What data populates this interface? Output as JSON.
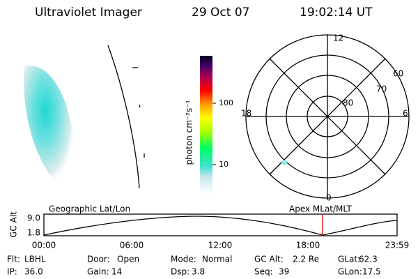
{
  "header": {
    "instrument": "Ultraviolet Imager",
    "date": "29 Oct 07",
    "time": "19:02:14 UT"
  },
  "colorbar": {
    "label": "photon cm⁻²s⁻¹",
    "ticks": [
      "100",
      "10"
    ]
  },
  "polar": {
    "mlt_labels": [
      "12",
      "18",
      "6",
      "0"
    ],
    "lat_labels": [
      "60",
      "70",
      "80"
    ]
  },
  "altitude_plot": {
    "left_title": "Geographic Lat/Lon",
    "right_title": "Apex MLat/MLT",
    "y_label": "GC Alt",
    "y_ticks": [
      "9.0",
      "1.8"
    ],
    "x_ticks": [
      "00:00",
      "06:00",
      "12:00",
      "18:00",
      "23:59"
    ]
  },
  "footer": {
    "rows": [
      [
        [
          "Flt:",
          "LBHL"
        ],
        [
          "Door:",
          "Open"
        ],
        [
          "Mode:",
          "Normal"
        ],
        [
          "GC Alt:",
          "2.2 Re"
        ],
        [
          "GLat:",
          "62.3"
        ]
      ],
      [
        [
          "IP:",
          "36.0"
        ],
        [
          "Gain:",
          "14"
        ],
        [
          "Dsp:",
          "3.8"
        ],
        [
          "Seq:",
          "39"
        ],
        [
          "GLon:",
          "17.5"
        ]
      ]
    ]
  }
}
